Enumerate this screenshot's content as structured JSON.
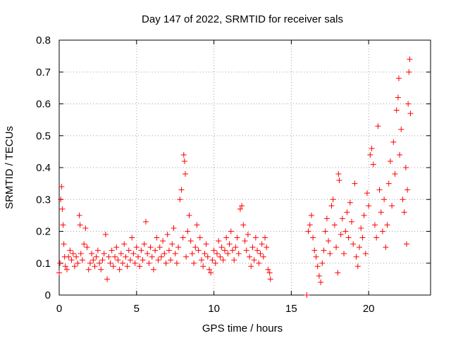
{
  "chart_data": {
    "type": "scatter",
    "title": "Day 147 of 2022, SRMTID for receiver sals",
    "xlabel": "GPS time / hours",
    "ylabel": "SRMTID / TECUs",
    "xlim": [
      0,
      24
    ],
    "ylim": [
      0,
      0.8
    ],
    "xticks": [
      0,
      5,
      10,
      15,
      20
    ],
    "xtick_labels": [
      "0",
      "5",
      "10",
      "15",
      "20"
    ],
    "yticks": [
      0,
      0.1,
      0.2,
      0.3,
      0.4,
      0.5,
      0.6,
      0.7,
      0.8
    ],
    "ytick_labels": [
      "0",
      "0.1",
      "0.2",
      "0.3",
      "0.4",
      "0.5",
      "0.6",
      "0.7",
      "0.8"
    ],
    "grid": true,
    "marker": "plus",
    "series": [
      {
        "name": "SRMTID",
        "color": "#ff0000",
        "points": [
          [
            0.0,
            0.07
          ],
          [
            0.05,
            0.1
          ],
          [
            0.1,
            0.3
          ],
          [
            0.15,
            0.34
          ],
          [
            0.2,
            0.27
          ],
          [
            0.25,
            0.22
          ],
          [
            0.3,
            0.16
          ],
          [
            0.35,
            0.12
          ],
          [
            0.4,
            0.09
          ],
          [
            0.5,
            0.08
          ],
          [
            0.6,
            0.12
          ],
          [
            0.7,
            0.14
          ],
          [
            0.8,
            0.11
          ],
          [
            0.9,
            0.13
          ],
          [
            1.0,
            0.09
          ],
          [
            1.1,
            0.12
          ],
          [
            1.2,
            0.1
          ],
          [
            1.3,
            0.25
          ],
          [
            1.35,
            0.22
          ],
          [
            1.4,
            0.13
          ],
          [
            1.5,
            0.11
          ],
          [
            1.6,
            0.16
          ],
          [
            1.7,
            0.21
          ],
          [
            1.8,
            0.15
          ],
          [
            1.9,
            0.08
          ],
          [
            2.0,
            0.1
          ],
          [
            2.1,
            0.13
          ],
          [
            2.2,
            0.11
          ],
          [
            2.3,
            0.09
          ],
          [
            2.4,
            0.12
          ],
          [
            2.5,
            0.14
          ],
          [
            2.6,
            0.1
          ],
          [
            2.7,
            0.08
          ],
          [
            2.8,
            0.11
          ],
          [
            2.9,
            0.13
          ],
          [
            3.0,
            0.19
          ],
          [
            3.1,
            0.05
          ],
          [
            3.2,
            0.12
          ],
          [
            3.3,
            0.1
          ],
          [
            3.4,
            0.14
          ],
          [
            3.5,
            0.09
          ],
          [
            3.6,
            0.12
          ],
          [
            3.7,
            0.15
          ],
          [
            3.8,
            0.11
          ],
          [
            3.9,
            0.08
          ],
          [
            4.0,
            0.13
          ],
          [
            4.1,
            0.1
          ],
          [
            4.2,
            0.16
          ],
          [
            4.3,
            0.12
          ],
          [
            4.4,
            0.09
          ],
          [
            4.5,
            0.14
          ],
          [
            4.6,
            0.11
          ],
          [
            4.7,
            0.18
          ],
          [
            4.8,
            0.13
          ],
          [
            4.9,
            0.1
          ],
          [
            5.0,
            0.15
          ],
          [
            5.1,
            0.12
          ],
          [
            5.2,
            0.09
          ],
          [
            5.3,
            0.14
          ],
          [
            5.4,
            0.11
          ],
          [
            5.5,
            0.16
          ],
          [
            5.6,
            0.23
          ],
          [
            5.7,
            0.13
          ],
          [
            5.8,
            0.1
          ],
          [
            5.9,
            0.15
          ],
          [
            6.0,
            0.12
          ],
          [
            6.1,
            0.08
          ],
          [
            6.2,
            0.14
          ],
          [
            6.3,
            0.18
          ],
          [
            6.4,
            0.11
          ],
          [
            6.5,
            0.15
          ],
          [
            6.6,
            0.12
          ],
          [
            6.7,
            0.17
          ],
          [
            6.8,
            0.13
          ],
          [
            6.9,
            0.1
          ],
          [
            7.0,
            0.19
          ],
          [
            7.1,
            0.14
          ],
          [
            7.2,
            0.11
          ],
          [
            7.3,
            0.16
          ],
          [
            7.4,
            0.21
          ],
          [
            7.5,
            0.13
          ],
          [
            7.6,
            0.1
          ],
          [
            7.7,
            0.15
          ],
          [
            7.8,
            0.3
          ],
          [
            7.9,
            0.33
          ],
          [
            8.0,
            0.18
          ],
          [
            8.05,
            0.44
          ],
          [
            8.1,
            0.42
          ],
          [
            8.15,
            0.38
          ],
          [
            8.2,
            0.12
          ],
          [
            8.3,
            0.2
          ],
          [
            8.4,
            0.25
          ],
          [
            8.5,
            0.17
          ],
          [
            8.6,
            0.13
          ],
          [
            8.7,
            0.1
          ],
          [
            8.8,
            0.15
          ],
          [
            8.9,
            0.22
          ],
          [
            9.0,
            0.14
          ],
          [
            9.1,
            0.18
          ],
          [
            9.2,
            0.11
          ],
          [
            9.3,
            0.09
          ],
          [
            9.4,
            0.13
          ],
          [
            9.5,
            0.16
          ],
          [
            9.6,
            0.12
          ],
          [
            9.7,
            0.08
          ],
          [
            9.8,
            0.07
          ],
          [
            9.9,
            0.11
          ],
          [
            10.0,
            0.14
          ],
          [
            10.1,
            0.1
          ],
          [
            10.2,
            0.13
          ],
          [
            10.3,
            0.17
          ],
          [
            10.4,
            0.12
          ],
          [
            10.5,
            0.15
          ],
          [
            10.6,
            0.11
          ],
          [
            10.7,
            0.14
          ],
          [
            10.8,
            0.18
          ],
          [
            10.9,
            0.13
          ],
          [
            11.0,
            0.16
          ],
          [
            11.1,
            0.2
          ],
          [
            11.2,
            0.14
          ],
          [
            11.3,
            0.11
          ],
          [
            11.4,
            0.15
          ],
          [
            11.5,
            0.18
          ],
          [
            11.6,
            0.13
          ],
          [
            11.7,
            0.27
          ],
          [
            11.8,
            0.28
          ],
          [
            11.9,
            0.22
          ],
          [
            12.0,
            0.17
          ],
          [
            12.1,
            0.14
          ],
          [
            12.2,
            0.19
          ],
          [
            12.3,
            0.12
          ],
          [
            12.4,
            0.09
          ],
          [
            12.5,
            0.15
          ],
          [
            12.6,
            0.11
          ],
          [
            12.7,
            0.18
          ],
          [
            12.8,
            0.14
          ],
          [
            12.9,
            0.1
          ],
          [
            13.0,
            0.13
          ],
          [
            13.1,
            0.16
          ],
          [
            13.2,
            0.12
          ],
          [
            13.3,
            0.18
          ],
          [
            13.4,
            0.15
          ],
          [
            13.5,
            0.08
          ],
          [
            13.6,
            0.07
          ],
          [
            13.65,
            0.05
          ],
          [
            16.0,
            0.0
          ],
          [
            16.1,
            0.2
          ],
          [
            16.2,
            0.22
          ],
          [
            16.3,
            0.25
          ],
          [
            16.4,
            0.18
          ],
          [
            16.5,
            0.14
          ],
          [
            16.6,
            0.12
          ],
          [
            16.7,
            0.09
          ],
          [
            16.8,
            0.06
          ],
          [
            16.9,
            0.04
          ],
          [
            17.0,
            0.1
          ],
          [
            17.1,
            0.14
          ],
          [
            17.2,
            0.2
          ],
          [
            17.3,
            0.24
          ],
          [
            17.4,
            0.17
          ],
          [
            17.5,
            0.13
          ],
          [
            17.6,
            0.28
          ],
          [
            17.7,
            0.3
          ],
          [
            17.8,
            0.22
          ],
          [
            17.9,
            0.15
          ],
          [
            18.0,
            0.07
          ],
          [
            18.05,
            0.38
          ],
          [
            18.1,
            0.36
          ],
          [
            18.2,
            0.19
          ],
          [
            18.3,
            0.24
          ],
          [
            18.4,
            0.13
          ],
          [
            18.5,
            0.2
          ],
          [
            18.6,
            0.26
          ],
          [
            18.7,
            0.18
          ],
          [
            18.8,
            0.29
          ],
          [
            18.9,
            0.23
          ],
          [
            19.0,
            0.16
          ],
          [
            19.1,
            0.35
          ],
          [
            19.2,
            0.12
          ],
          [
            19.3,
            0.09
          ],
          [
            19.4,
            0.15
          ],
          [
            19.5,
            0.21
          ],
          [
            19.6,
            0.18
          ],
          [
            19.7,
            0.25
          ],
          [
            19.8,
            0.13
          ],
          [
            19.9,
            0.32
          ],
          [
            20.0,
            0.28
          ],
          [
            20.1,
            0.44
          ],
          [
            20.2,
            0.46
          ],
          [
            20.3,
            0.41
          ],
          [
            20.4,
            0.22
          ],
          [
            20.5,
            0.18
          ],
          [
            20.6,
            0.53
          ],
          [
            20.7,
            0.33
          ],
          [
            20.8,
            0.26
          ],
          [
            20.9,
            0.2
          ],
          [
            21.0,
            0.3
          ],
          [
            21.1,
            0.15
          ],
          [
            21.2,
            0.22
          ],
          [
            21.3,
            0.35
          ],
          [
            21.4,
            0.42
          ],
          [
            21.5,
            0.28
          ],
          [
            21.6,
            0.48
          ],
          [
            21.7,
            0.38
          ],
          [
            21.8,
            0.58
          ],
          [
            21.9,
            0.62
          ],
          [
            21.95,
            0.68
          ],
          [
            22.0,
            0.44
          ],
          [
            22.1,
            0.52
          ],
          [
            22.2,
            0.3
          ],
          [
            22.3,
            0.26
          ],
          [
            22.4,
            0.4
          ],
          [
            22.45,
            0.16
          ],
          [
            22.5,
            0.33
          ],
          [
            22.55,
            0.6
          ],
          [
            22.6,
            0.7
          ],
          [
            22.65,
            0.74
          ],
          [
            22.7,
            0.57
          ]
        ]
      }
    ]
  }
}
